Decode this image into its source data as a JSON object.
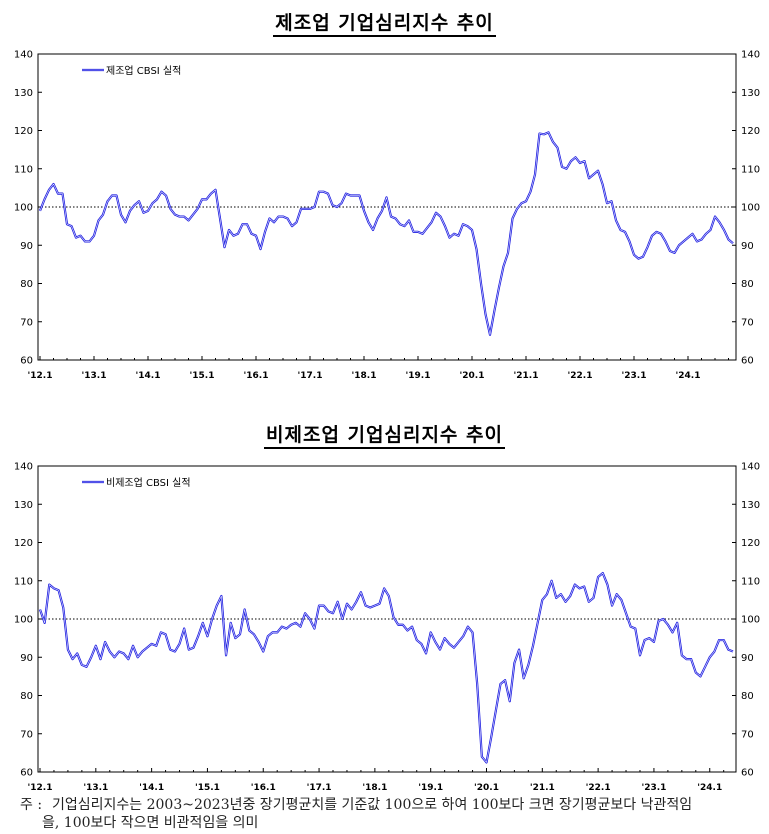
{
  "chart_data": [
    {
      "type": "line",
      "title": "제조업 기업심리지수 추이",
      "legend": "제조업 CBSI 실적",
      "legend_position": "top-left",
      "ylim": [
        60,
        140
      ],
      "yticks": [
        "60",
        "70",
        "80",
        "90",
        "100",
        "110",
        "120",
        "130",
        "140"
      ],
      "xticks": [
        "'12.1",
        "'13.1",
        "'14.1",
        "'15.1",
        "'16.1",
        "'17.1",
        "'18.1",
        "'19.1",
        "'20.1",
        "'21.1",
        "'22.1",
        "'23.1",
        "'24.1"
      ],
      "reference_line": 100,
      "grid": false,
      "series": [
        {
          "color": "#1f1fe0",
          "values": [
            99,
            102,
            104.5,
            106,
            103.5,
            103.5,
            95.5,
            95,
            92,
            92.5,
            91,
            91,
            92.5,
            96.5,
            98,
            101.5,
            103,
            103,
            98,
            96,
            99,
            100.5,
            101.5,
            98.5,
            99,
            101,
            102,
            104,
            103,
            99.5,
            98,
            97.5,
            97.5,
            96.5,
            98,
            99.5,
            102,
            102,
            103.5,
            104.5,
            97,
            89.5,
            94,
            92.5,
            93,
            95.5,
            95.5,
            93,
            92.5,
            89,
            93.5,
            97,
            96,
            97.5,
            97.5,
            97,
            95,
            96,
            99.5,
            99.5,
            99.5,
            100,
            104,
            104,
            103.5,
            100.5,
            100,
            101,
            103.5,
            103,
            103,
            103,
            99,
            96,
            94,
            97,
            99,
            102.5,
            97.5,
            97,
            95.5,
            95,
            96.5,
            93.5,
            93.5,
            93,
            94.5,
            96,
            98.5,
            97.5,
            95,
            92,
            93,
            92.5,
            95.5,
            95,
            94,
            89,
            80,
            72,
            66.6,
            73,
            79,
            84.5,
            88,
            97,
            99.5,
            101,
            101.5,
            104,
            108.5,
            119.2,
            119,
            119.5,
            117,
            115.5,
            110.5,
            110,
            112,
            113,
            111.5,
            112,
            107.5,
            108.5,
            109.5,
            106,
            101,
            101.5,
            96.5,
            94,
            93.5,
            91,
            87.5,
            86.5,
            87,
            89.5,
            92.5,
            93.5,
            93,
            91,
            88.5,
            88,
            90,
            91,
            92,
            93,
            91,
            91.5,
            93,
            94,
            97.5,
            96,
            94,
            91.5,
            90.5
          ]
        }
      ]
    },
    {
      "type": "line",
      "title": "비제조업 기업심리지수 추이",
      "legend": "비제조업 CBSI 실적",
      "legend_position": "top-left",
      "ylim": [
        60,
        140
      ],
      "yticks": [
        "60",
        "70",
        "80",
        "90",
        "100",
        "110",
        "120",
        "130",
        "140"
      ],
      "xticks": [
        "'12.1",
        "'13.1",
        "'14.1",
        "'15.1",
        "'16.1",
        "'17.1",
        "'18.1",
        "'19.1",
        "'20.1",
        "'21.1",
        "'22.1",
        "'23.1",
        "'24.1"
      ],
      "reference_line": 100,
      "grid": false,
      "series": [
        {
          "color": "#1f1fe0",
          "values": [
            102.5,
            99,
            109,
            108,
            107.5,
            103,
            92,
            89.5,
            91,
            88,
            87.5,
            90,
            93,
            89.5,
            94,
            91.5,
            90,
            91.5,
            91,
            89.5,
            93,
            90,
            91.5,
            92.5,
            93.5,
            93,
            96.5,
            96,
            92,
            91.5,
            93.5,
            97.5,
            92,
            92.5,
            95.5,
            99,
            95.5,
            100,
            103.5,
            106,
            90.5,
            99,
            95,
            96,
            102.5,
            97,
            96,
            94,
            91.5,
            95.5,
            96.5,
            96.5,
            98,
            97.5,
            98.5,
            99,
            98,
            101.5,
            100,
            97.5,
            103.5,
            103.5,
            102,
            101.5,
            104.5,
            100,
            104,
            102.5,
            104.5,
            107,
            103.5,
            103,
            103.5,
            104,
            108,
            106,
            100.5,
            98.5,
            98.5,
            97,
            98,
            94.5,
            93.5,
            91,
            96.5,
            94,
            92,
            95,
            93.5,
            92.5,
            94,
            95.5,
            98,
            96.5,
            83,
            64,
            62.5,
            69,
            76,
            83,
            84,
            78.5,
            88.5,
            92,
            84.5,
            88,
            93,
            99,
            105,
            106.5,
            110,
            105.5,
            106.5,
            104.5,
            106,
            109,
            108,
            108.5,
            104.5,
            105.5,
            111,
            112,
            109,
            103.5,
            106.5,
            105,
            101.5,
            98,
            97.5,
            90.5,
            94.5,
            95,
            94,
            99.5,
            100,
            98.5,
            96.5,
            99,
            90.5,
            89.5,
            89.5,
            86,
            85,
            87.5,
            90,
            91.5,
            94.5,
            94.5,
            92,
            91.5
          ]
        }
      ]
    }
  ],
  "note": {
    "prefix": "주 :",
    "line1": "기업심리지수는 2003~2023년중 장기평균치를 기준값 100으로 하여 100보다 크면 장기평균보다 낙관적임",
    "line2": "을, 100보다 작으면 비관적임을 의미"
  }
}
